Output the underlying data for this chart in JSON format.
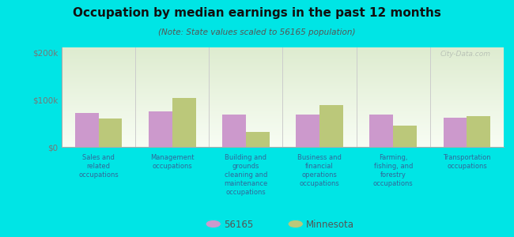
{
  "title": "Occupation by median earnings in the past 12 months",
  "subtitle": "(Note: State values scaled to 56165 population)",
  "background_color": "#00e5e5",
  "plot_bg_top": "#deecd0",
  "plot_bg_bottom": "#f8fdf4",
  "categories": [
    "Sales and\nrelated\noccupations",
    "Management\noccupations",
    "Building and\ngrounds\ncleaning and\nmaintenance\noccupations",
    "Business and\nfinancial\noperations\noccupations",
    "Farming,\nfishing, and\nforestry\noccupations",
    "Transportation\noccupations"
  ],
  "values_56165": [
    72000,
    75000,
    68000,
    68000,
    68000,
    62000
  ],
  "values_minnesota": [
    60000,
    103000,
    32000,
    88000,
    45000,
    65000
  ],
  "color_56165": "#cc99cc",
  "color_minnesota": "#bbc87a",
  "ylim": [
    0,
    210000
  ],
  "yticks": [
    0,
    100000,
    200000
  ],
  "ytick_labels": [
    "$0",
    "$100k",
    "$200k"
  ],
  "bar_width": 0.32,
  "legend_labels": [
    "56165",
    "Minnesota"
  ],
  "watermark": "City-Data.com",
  "tick_color": "#777777",
  "xlabel_color": "#336699",
  "title_color": "#111111",
  "subtitle_color": "#555555"
}
